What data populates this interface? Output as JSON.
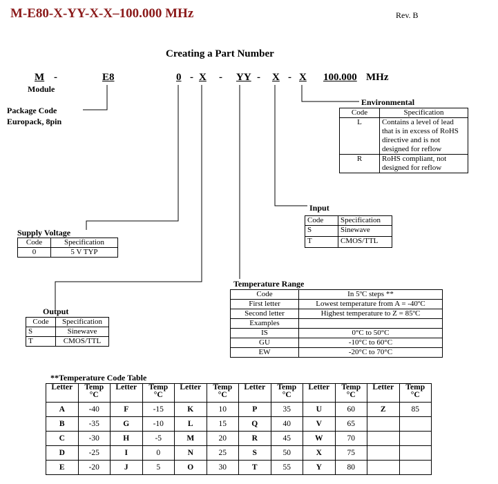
{
  "header": {
    "title": "M-E80-X-YY-X-X–100.000 MHz",
    "revision": "Rev. B"
  },
  "section_title": "Creating a Part Number",
  "part_number": {
    "segments": [
      "M",
      "-",
      "E8",
      "0",
      "-",
      "X",
      "-",
      "YY",
      "-",
      "X",
      "-",
      "X",
      "100.000",
      "MHz"
    ],
    "module_label": "Module"
  },
  "package": {
    "line1": "Package Code",
    "line2": "Europack, 8pin"
  },
  "environmental": {
    "title": "Environmental",
    "headers": [
      "Code",
      "Specification"
    ],
    "rows": [
      [
        "L",
        "Contains a level of lead that is in excess of RoHS directive and is not designed for reflow"
      ],
      [
        "R",
        "RoHS compliant, not designed for reflow"
      ]
    ]
  },
  "input": {
    "title": "Input",
    "headers": [
      "Code",
      "Specification"
    ],
    "rows": [
      [
        "S",
        "Sinewave"
      ],
      [
        "T",
        "CMOS/TTL"
      ]
    ]
  },
  "supply_voltage": {
    "title": "Supply Voltage",
    "headers": [
      "Code",
      "Specification"
    ],
    "rows": [
      [
        "0",
        "5 V TYP"
      ]
    ]
  },
  "output": {
    "title": "Output",
    "headers": [
      "Code",
      "Specification"
    ],
    "rows": [
      [
        "S",
        "Sinewave"
      ],
      [
        "T",
        "CMOS/TTL"
      ]
    ]
  },
  "temperature_range": {
    "title": "Temperature Range",
    "rows": [
      [
        "Code",
        "In 5ºC steps **"
      ],
      [
        "First letter",
        "Lowest temperature from A = -40ºC"
      ],
      [
        "Second letter",
        "Highest temperature to Z = 85ºC"
      ],
      [
        "Examples",
        ""
      ],
      [
        "IS",
        "0°C to 50°C"
      ],
      [
        "GU",
        "-10°C to 60°C"
      ],
      [
        "EW",
        "-20°C to 70°C"
      ]
    ]
  },
  "temp_code_table": {
    "title": "**Temperature Code Table",
    "header_letter": "Letter",
    "header_temp1": "Temp",
    "header_temp2": "°C",
    "rows": [
      [
        "A",
        "-40",
        "F",
        "-15",
        "K",
        "10",
        "P",
        "35",
        "U",
        "60",
        "Z",
        "85"
      ],
      [
        "B",
        "-35",
        "G",
        "-10",
        "L",
        "15",
        "Q",
        "40",
        "V",
        "65",
        "",
        ""
      ],
      [
        "C",
        "-30",
        "H",
        "-5",
        "M",
        "20",
        "R",
        "45",
        "W",
        "70",
        "",
        ""
      ],
      [
        "D",
        "-25",
        "I",
        "0",
        "N",
        "25",
        "S",
        "50",
        "X",
        "75",
        "",
        ""
      ],
      [
        "E",
        "-20",
        "J",
        "5",
        "O",
        "30",
        "T",
        "55",
        "Y",
        "80",
        "",
        ""
      ]
    ]
  }
}
